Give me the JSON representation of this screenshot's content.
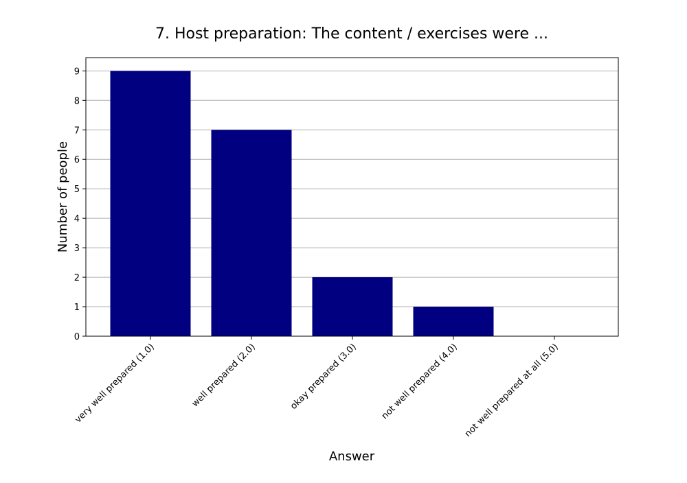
{
  "chart_data": {
    "type": "bar",
    "title": "7. Host preparation: The content / exercises were ...",
    "xlabel": "Answer",
    "ylabel": "Number of people",
    "categories": [
      "very well prepared (1.0)",
      "well prepared (2.0)",
      "okay prepared (3.0)",
      "not well prepared (4.0)",
      "not well prepared at all (5.0)"
    ],
    "values": [
      9,
      7,
      2,
      1,
      0
    ],
    "ylim": [
      0,
      9.45
    ],
    "yticks": [
      "0",
      "1",
      "2",
      "3",
      "4",
      "5",
      "6",
      "7",
      "8",
      "9"
    ],
    "grid": "horizontal",
    "bar_color": "#000080",
    "grid_color": "#b0b0b0"
  }
}
